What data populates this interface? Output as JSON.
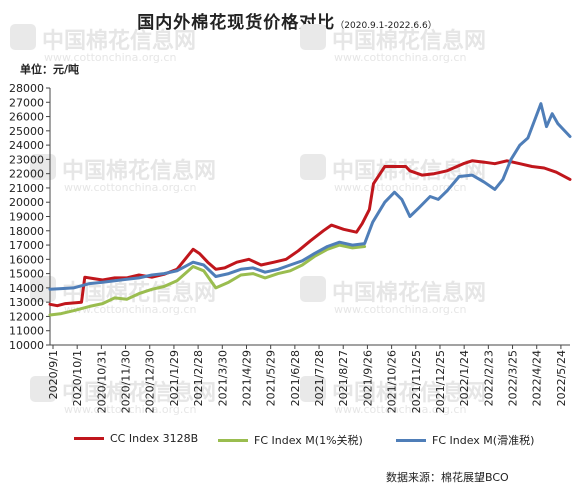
{
  "source_text": "数据来源：棉花展望BCO",
  "watermark": {
    "logo_text": "中国棉花信息网",
    "url_text": "www.cottonchina.org.cn"
  },
  "colors": {
    "cc": "#c0161c",
    "fc1": "#9abd4f",
    "fc2": "#4f7eb8",
    "axis": "#444444"
  },
  "chart_data": {
    "type": "line",
    "title": "国内外棉花现货价格对比",
    "subtitle": "（2020.9.1-2022.6.6）",
    "ylabel": "单位：元/吨",
    "xlabel": "",
    "ylim": [
      10000,
      28000
    ],
    "yticks": [
      10000,
      11000,
      12000,
      13000,
      14000,
      15000,
      16000,
      17000,
      18000,
      19000,
      20000,
      21000,
      22000,
      23000,
      24000,
      25000,
      26000,
      27000,
      28000
    ],
    "x_range": [
      "2020-09-01",
      "2022-06-06"
    ],
    "categories": [
      "2020/9/1",
      "2020/10/1",
      "2020/10/31",
      "2020/11/30",
      "2020/12/30",
      "2021/1/29",
      "2021/2/28",
      "2021/3/30",
      "2021/4/29",
      "2021/5/29",
      "2021/6/28",
      "2021/7/28",
      "2021/8/27",
      "2021/9/26",
      "2021/10/26",
      "2021/11/25",
      "2021/12/25",
      "2022/1/24",
      "2022/2/23",
      "2022/3/25",
      "2022/4/24",
      "2022/5/24"
    ],
    "grid": false,
    "legend_position": "bottom",
    "series": [
      {
        "name": "CC Index 3128B",
        "color": "#c0161c",
        "points": [
          [
            "2020-09-01",
            12850
          ],
          [
            "2020-09-10",
            12750
          ],
          [
            "2020-09-20",
            12900
          ],
          [
            "2020-10-01",
            12950
          ],
          [
            "2020-10-10",
            13000
          ],
          [
            "2020-10-14",
            14750
          ],
          [
            "2020-10-25",
            14650
          ],
          [
            "2020-11-05",
            14550
          ],
          [
            "2020-11-20",
            14700
          ],
          [
            "2020-12-05",
            14700
          ],
          [
            "2020-12-20",
            14900
          ],
          [
            "2021-01-05",
            14750
          ],
          [
            "2021-01-20",
            14950
          ],
          [
            "2021-02-05",
            15300
          ],
          [
            "2021-02-25",
            16700
          ],
          [
            "2021-03-05",
            16400
          ],
          [
            "2021-03-15",
            15800
          ],
          [
            "2021-03-25",
            15300
          ],
          [
            "2021-04-05",
            15400
          ],
          [
            "2021-04-20",
            15800
          ],
          [
            "2021-05-05",
            16000
          ],
          [
            "2021-05-20",
            15600
          ],
          [
            "2021-06-05",
            15800
          ],
          [
            "2021-06-20",
            16000
          ],
          [
            "2021-07-05",
            16600
          ],
          [
            "2021-07-20",
            17300
          ],
          [
            "2021-08-05",
            18000
          ],
          [
            "2021-08-15",
            18400
          ],
          [
            "2021-08-30",
            18100
          ],
          [
            "2021-09-15",
            17900
          ],
          [
            "2021-09-22",
            18500
          ],
          [
            "2021-10-01",
            19500
          ],
          [
            "2021-10-06",
            21300
          ],
          [
            "2021-10-20",
            22500
          ],
          [
            "2021-11-05",
            22500
          ],
          [
            "2021-11-15",
            22500
          ],
          [
            "2021-11-20",
            22200
          ],
          [
            "2021-12-05",
            21900
          ],
          [
            "2021-12-20",
            22000
          ],
          [
            "2022-01-05",
            22200
          ],
          [
            "2022-01-25",
            22700
          ],
          [
            "2022-02-05",
            22900
          ],
          [
            "2022-02-20",
            22800
          ],
          [
            "2022-03-05",
            22700
          ],
          [
            "2022-03-20",
            22900
          ],
          [
            "2022-04-05",
            22700
          ],
          [
            "2022-04-20",
            22500
          ],
          [
            "2022-05-05",
            22400
          ],
          [
            "2022-05-20",
            22100
          ],
          [
            "2022-06-06",
            21600
          ]
        ]
      },
      {
        "name": "FC Index M(1%关税)",
        "color": "#9abd4f",
        "points": [
          [
            "2020-09-01",
            12100
          ],
          [
            "2020-09-15",
            12200
          ],
          [
            "2020-09-30",
            12400
          ],
          [
            "2020-10-20",
            12700
          ],
          [
            "2020-11-05",
            12900
          ],
          [
            "2020-11-20",
            13300
          ],
          [
            "2020-12-05",
            13200
          ],
          [
            "2020-12-20",
            13600
          ],
          [
            "2021-01-05",
            13900
          ],
          [
            "2021-01-20",
            14100
          ],
          [
            "2021-02-05",
            14500
          ],
          [
            "2021-02-25",
            15500
          ],
          [
            "2021-03-10",
            15200
          ],
          [
            "2021-03-25",
            14000
          ],
          [
            "2021-04-10",
            14400
          ],
          [
            "2021-04-25",
            14900
          ],
          [
            "2021-05-10",
            15000
          ],
          [
            "2021-05-25",
            14700
          ],
          [
            "2021-06-10",
            15000
          ],
          [
            "2021-06-25",
            15200
          ],
          [
            "2021-07-10",
            15600
          ],
          [
            "2021-07-25",
            16200
          ],
          [
            "2021-08-10",
            16700
          ],
          [
            "2021-08-25",
            17000
          ],
          [
            "2021-09-10",
            16800
          ],
          [
            "2021-09-25",
            16900
          ]
        ]
      },
      {
        "name": "FC Index M(滑准税)",
        "color": "#4f7eb8",
        "points": [
          [
            "2020-09-01",
            13900
          ],
          [
            "2020-09-15",
            13950
          ],
          [
            "2020-09-30",
            14000
          ],
          [
            "2020-10-20",
            14300
          ],
          [
            "2020-11-05",
            14400
          ],
          [
            "2020-11-20",
            14500
          ],
          [
            "2020-12-05",
            14600
          ],
          [
            "2020-12-20",
            14700
          ],
          [
            "2021-01-05",
            14900
          ],
          [
            "2021-01-20",
            15000
          ],
          [
            "2021-02-05",
            15200
          ],
          [
            "2021-02-25",
            15800
          ],
          [
            "2021-03-10",
            15600
          ],
          [
            "2021-03-25",
            14800
          ],
          [
            "2021-04-10",
            15000
          ],
          [
            "2021-04-25",
            15300
          ],
          [
            "2021-05-10",
            15400
          ],
          [
            "2021-05-25",
            15100
          ],
          [
            "2021-06-10",
            15300
          ],
          [
            "2021-06-25",
            15600
          ],
          [
            "2021-07-10",
            15900
          ],
          [
            "2021-07-25",
            16400
          ],
          [
            "2021-08-10",
            16900
          ],
          [
            "2021-08-25",
            17200
          ],
          [
            "2021-09-10",
            17000
          ],
          [
            "2021-09-25",
            17100
          ],
          [
            "2021-10-05",
            18600
          ],
          [
            "2021-10-20",
            20000
          ],
          [
            "2021-11-01",
            20700
          ],
          [
            "2021-11-10",
            20200
          ],
          [
            "2021-11-20",
            19000
          ],
          [
            "2021-12-01",
            19600
          ],
          [
            "2021-12-15",
            20400
          ],
          [
            "2021-12-25",
            20200
          ],
          [
            "2022-01-05",
            20800
          ],
          [
            "2022-01-20",
            21800
          ],
          [
            "2022-02-05",
            21900
          ],
          [
            "2022-02-20",
            21400
          ],
          [
            "2022-03-05",
            20900
          ],
          [
            "2022-03-15",
            21600
          ],
          [
            "2022-03-25",
            23000
          ],
          [
            "2022-04-05",
            24000
          ],
          [
            "2022-04-15",
            24500
          ],
          [
            "2022-04-25",
            26000
          ],
          [
            "2022-05-01",
            26900
          ],
          [
            "2022-05-08",
            25300
          ],
          [
            "2022-05-15",
            26200
          ],
          [
            "2022-05-22",
            25500
          ],
          [
            "2022-06-06",
            24600
          ]
        ]
      }
    ]
  }
}
